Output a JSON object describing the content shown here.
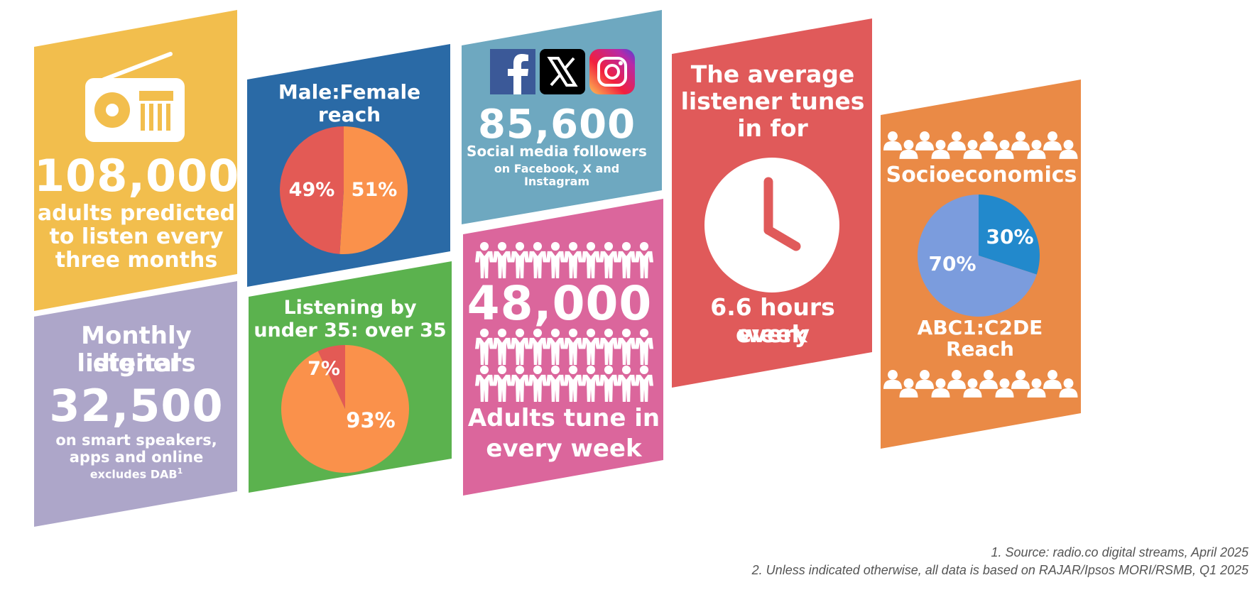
{
  "colors": {
    "yellow": "#F2BE4D",
    "lavender": "#ADA6C9",
    "blue": "#2A6AA6",
    "green": "#5BB24E",
    "teal": "#6EA8C0",
    "pink": "#DB669C",
    "red": "#E05A5A",
    "orange": "#EA8A46",
    "pie_orange": "#FA914B",
    "pie_red": "#E35A55",
    "pie_lightblue": "#7B9CDD",
    "pie_darkblue": "#2289CC"
  },
  "reach": {
    "number": "108,000",
    "line1": "adults predicted",
    "line2": "to listen every",
    "line3": "three months",
    "icon": "radio-icon"
  },
  "digital": {
    "title1": "Monthly digital",
    "title2": "listeners",
    "number": "32,500",
    "line1": "on smart speakers,",
    "line2": "apps and online",
    "note": "excludes DAB",
    "note_ref": "1"
  },
  "gender": {
    "title1": "Male:Female",
    "title2": "reach",
    "female_label": "49%",
    "male_label": "51%",
    "chart_data": {
      "type": "pie",
      "values": [
        51,
        49
      ],
      "labels": [
        "51%",
        "49%"
      ]
    }
  },
  "age": {
    "title1": "Listening by",
    "title2": "under 35: over 35",
    "small_label": "7%",
    "large_label": "93%",
    "chart_data": {
      "type": "pie",
      "values": [
        93,
        7
      ],
      "labels": [
        "93%",
        "7%"
      ]
    }
  },
  "social": {
    "number": "85,600",
    "line1": "Social media followers",
    "line2": "on Facebook, X and",
    "line3": "Instagram",
    "icons": [
      "facebook-icon",
      "x-icon",
      "instagram-icon"
    ]
  },
  "weekly": {
    "number": "48,000",
    "line1": "Adults tune in",
    "line2": "every week",
    "icon": "people-icon"
  },
  "hours": {
    "title1": "The average",
    "title2": "listener tunes",
    "title3": "in for",
    "line1": "6.6 hours every",
    "line2": "week",
    "icon": "clock-icon"
  },
  "socio": {
    "title": "Socioeconomics",
    "small_label": "30%",
    "large_label": "70%",
    "footer1": "ABC1:C2DE",
    "footer2": "Reach",
    "chart_data": {
      "type": "pie",
      "values": [
        30,
        70
      ],
      "labels": [
        "30%",
        "70%"
      ]
    }
  },
  "footnotes": {
    "note1": "1. Source: radio.co digital streams, April 2025",
    "note2": "2. Unless indicated otherwise, all data is based on RAJAR/Ipsos MORI/RSMB, Q1 2025"
  }
}
